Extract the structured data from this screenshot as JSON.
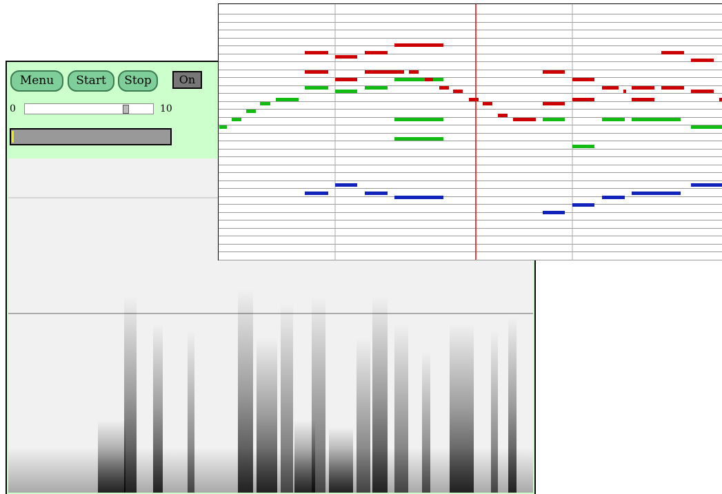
{
  "controls": {
    "menu": "Menu",
    "start": "Start",
    "stop": "Stop",
    "toggle": "On"
  },
  "slider": {
    "min": 0,
    "max": 10,
    "value": 8
  }
}
